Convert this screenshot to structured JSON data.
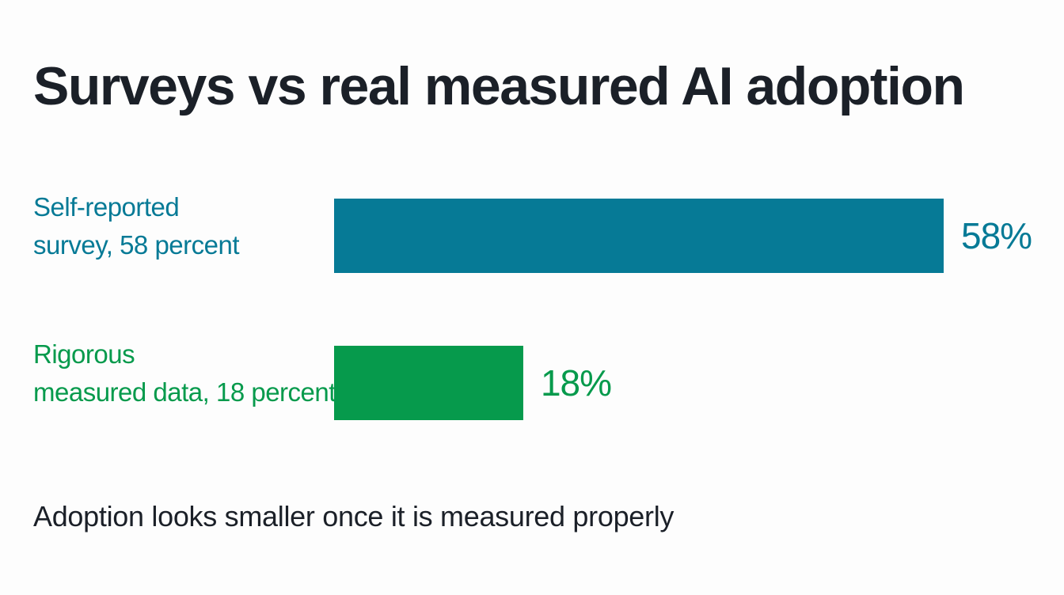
{
  "chart_data": {
    "type": "bar",
    "orientation": "horizontal",
    "title": "Surveys vs real measured AI adoption",
    "subtitle": "Adoption looks smaller once it is measured properly",
    "categories": [
      [
        "Self-reported",
        "survey, 58 percent"
      ],
      [
        "Rigorous",
        "measured data, 18 percent"
      ]
    ],
    "values": [
      58,
      18
    ],
    "value_labels": [
      "58%",
      "18%"
    ],
    "colors": [
      "#067a96",
      "#069a4c"
    ],
    "xlim": [
      0,
      58
    ],
    "grid": false,
    "legend": "none"
  }
}
